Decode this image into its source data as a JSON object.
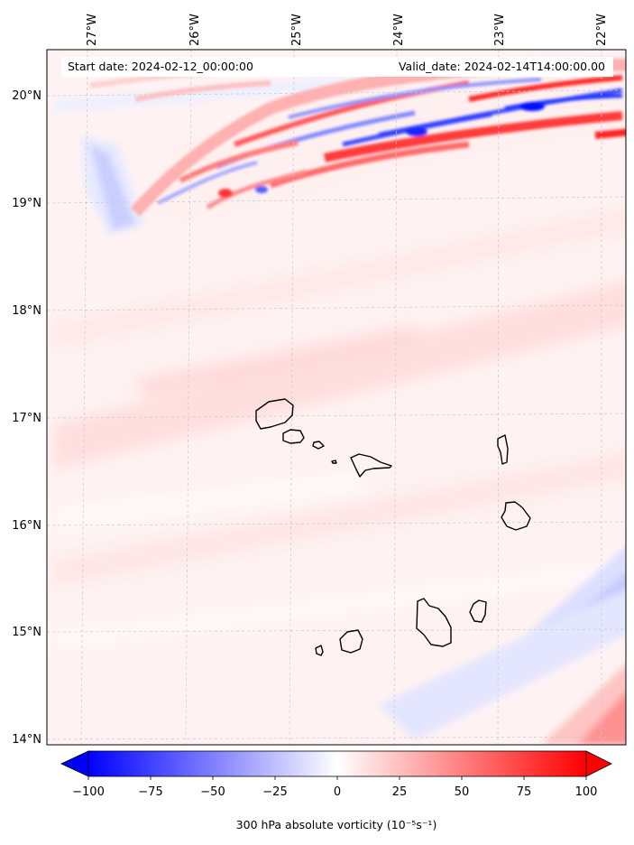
{
  "map": {
    "start_label": "Start date: 2024-02-12_00:00:00",
    "valid_label": "Valid_date: 2024-02-14T14:00:00.00",
    "lon_ticks": [
      "27°W",
      "26°W",
      "25°W",
      "24°W",
      "23°W",
      "22°W"
    ],
    "lat_ticks": [
      "20°N",
      "19°N",
      "18°N",
      "17°N",
      "16°N",
      "15°N",
      "14°N"
    ],
    "lon_values": [
      -27,
      -26,
      -25,
      -24,
      -23,
      -22
    ],
    "lat_values": [
      20,
      19,
      18,
      17,
      16,
      15,
      14
    ],
    "gridlines": true,
    "extent": {
      "lon_min": -27.33,
      "lon_max": -21.77,
      "lat_min": 13.96,
      "lat_max": 20.42
    },
    "background_color": "#fff2f2",
    "islands": [
      "Santo Antão",
      "São Vicente",
      "Santa Luzia",
      "Ilhéu Raso",
      "São Nicolau",
      "Sal",
      "Boa Vista",
      "Maio",
      "Santiago",
      "Fogo",
      "Brava"
    ]
  },
  "colorbar": {
    "label": "300 hPa absolute vorticity (10⁻⁵s⁻¹)",
    "ticks": [
      "−100",
      "−75",
      "−50",
      "−25",
      "0",
      "25",
      "50",
      "75",
      "100"
    ],
    "min": -100,
    "max": 100,
    "extend": "both",
    "cmap": "bwr",
    "color_min": "#0000ff",
    "color_mid": "#ffffff",
    "color_max": "#ff0000"
  }
}
